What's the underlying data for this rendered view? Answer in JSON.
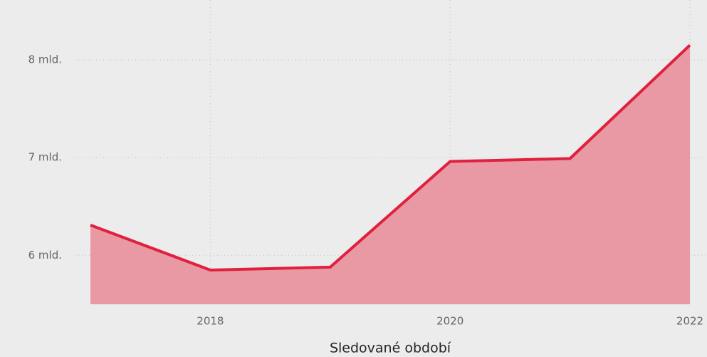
{
  "chart_data": {
    "type": "area",
    "x_label": "Sledované období",
    "x": [
      2017,
      2018,
      2019,
      2020,
      2021,
      2022
    ],
    "series": [
      {
        "color": "#e0203e",
        "fill": "#e899a4",
        "values": [
          6310000000,
          5850000000,
          5880000000,
          6960000000,
          6990000000,
          8150000000
        ]
      }
    ],
    "xlim": [
      2017,
      2022
    ],
    "xticks": [
      2018,
      2020,
      2022
    ],
    "ylim": [
      5500000000,
      8400000000
    ],
    "yticks": [
      {
        "value": 6000000000,
        "label": "6 mld."
      },
      {
        "value": 7000000000,
        "label": "7 mld."
      },
      {
        "value": 8000000000,
        "label": "8 mld."
      }
    ],
    "grid": true
  }
}
